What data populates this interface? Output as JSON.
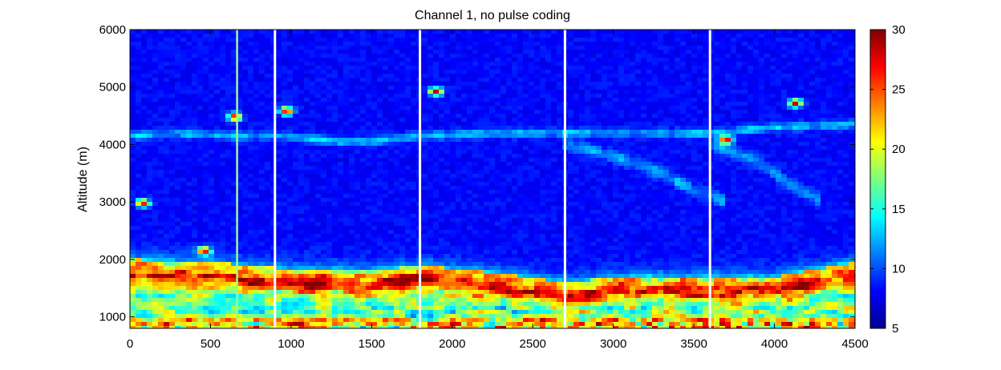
{
  "chart_data": {
    "type": "heatmap",
    "title": "Channel 1, no pulse coding",
    "xlabel": "",
    "ylabel": "Altitude (m)",
    "xlim": [
      0,
      4500
    ],
    "ylim": [
      800,
      6000
    ],
    "x_ticks": [
      0,
      500,
      1000,
      1500,
      2000,
      2500,
      3000,
      3500,
      4000,
      4500
    ],
    "y_ticks": [
      1000,
      2000,
      3000,
      4000,
      5000,
      6000
    ],
    "colorbar": {
      "range": [
        5,
        30
      ],
      "ticks": [
        5,
        10,
        15,
        20,
        25,
        30
      ],
      "colormap": "jet"
    },
    "white_separator_lines_x": [
      900,
      1800,
      2700,
      3600
    ],
    "green_line_x": 665,
    "features": {
      "boundary_layer_top": [
        [
          0,
          2000
        ],
        [
          500,
          1950
        ],
        [
          900,
          1850
        ],
        [
          1500,
          1800
        ],
        [
          1800,
          1900
        ],
        [
          2300,
          1750
        ],
        [
          2700,
          1600
        ],
        [
          3100,
          1700
        ],
        [
          3600,
          1700
        ],
        [
          4000,
          1700
        ],
        [
          4500,
          1950
        ]
      ],
      "cloud_layer_center": [
        [
          0,
          4150
        ],
        [
          300,
          4200
        ],
        [
          600,
          4150
        ],
        [
          900,
          4150
        ],
        [
          1300,
          4050
        ],
        [
          1500,
          4050
        ],
        [
          1800,
          4150
        ],
        [
          2400,
          4200
        ],
        [
          2700,
          4200
        ],
        [
          3600,
          4200
        ],
        [
          4000,
          4300
        ],
        [
          4500,
          4350
        ]
      ],
      "dispersed_layer_a": [
        [
          2700,
          4000
        ],
        [
          3000,
          3800
        ],
        [
          3300,
          3500
        ],
        [
          3500,
          3200
        ],
        [
          3700,
          3000
        ]
      ],
      "dispersed_layer_b": [
        [
          3600,
          4000
        ],
        [
          3900,
          3700
        ],
        [
          4100,
          3300
        ],
        [
          4300,
          3000
        ]
      ],
      "hotspots": [
        [
          650,
          4480
        ],
        [
          970,
          4580
        ],
        [
          1900,
          4920
        ],
        [
          3700,
          4080
        ],
        [
          4130,
          4720
        ],
        [
          460,
          2150
        ],
        [
          80,
          2980
        ]
      ]
    }
  }
}
